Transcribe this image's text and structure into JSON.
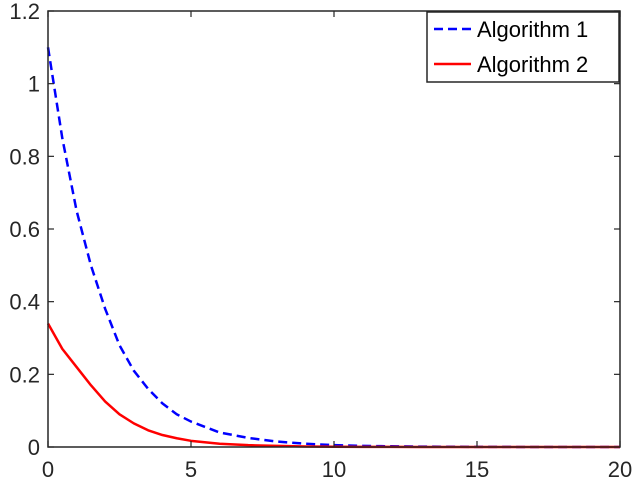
{
  "chart_data": {
    "type": "line",
    "title": "",
    "xlabel": "",
    "ylabel": "",
    "xlim": [
      0,
      20
    ],
    "ylim": [
      0,
      1.2
    ],
    "x_ticks": [
      0,
      5,
      10,
      15,
      20
    ],
    "y_ticks": [
      0,
      0.2,
      0.4,
      0.6,
      0.8,
      1,
      1.2
    ],
    "x_tick_labels": [
      "0",
      "5",
      "10",
      "15",
      "20"
    ],
    "y_tick_labels": [
      "0",
      "0.2",
      "0.4",
      "0.6",
      "0.8",
      "1",
      "1.2"
    ],
    "grid": false,
    "box": true,
    "legend_position": "top-right",
    "x": [
      0,
      0.5,
      1,
      1.5,
      2,
      2.5,
      3,
      3.5,
      4,
      4.5,
      5,
      6,
      7,
      8,
      9,
      10,
      11,
      12,
      13,
      14,
      15,
      16,
      17,
      18,
      19,
      20
    ],
    "series": [
      {
        "name": "Algorithm 1",
        "color": "#0000ff",
        "dash": "dashed",
        "values": [
          1.1,
          0.85,
          0.65,
          0.5,
          0.38,
          0.28,
          0.21,
          0.16,
          0.12,
          0.09,
          0.07,
          0.04,
          0.025,
          0.015,
          0.009,
          0.005,
          0.003,
          0.002,
          0.001,
          0.0007,
          0.0004,
          0.0002,
          0.0001,
          0.0001,
          0,
          0
        ]
      },
      {
        "name": "Algorithm 2",
        "color": "#ff0000",
        "dash": "solid",
        "values": [
          0.34,
          0.27,
          0.22,
          0.17,
          0.125,
          0.09,
          0.065,
          0.046,
          0.033,
          0.024,
          0.017,
          0.009,
          0.005,
          0.003,
          0.0015,
          0.0008,
          0.0004,
          0.0002,
          0.0001,
          5e-05,
          0,
          0,
          0,
          0,
          0,
          0
        ]
      }
    ]
  }
}
